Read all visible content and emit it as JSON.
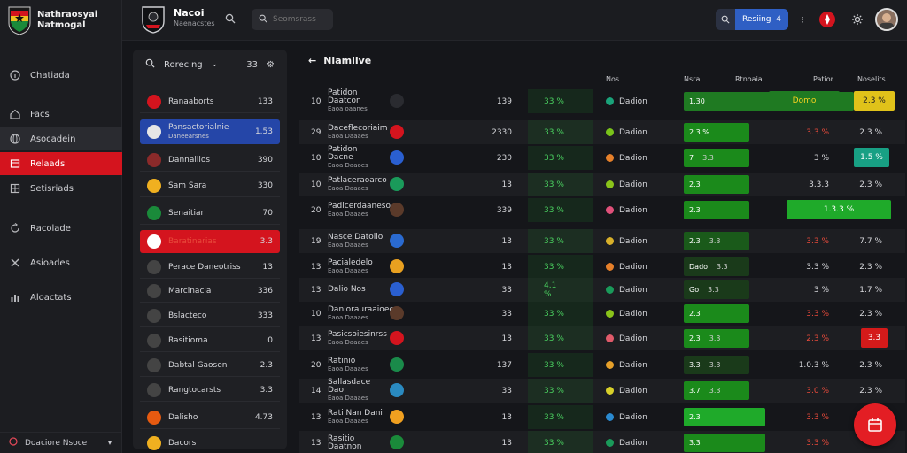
{
  "brand": {
    "title": "Nathraosyai\nNatmogal"
  },
  "nav": [
    {
      "label": "Chatiada",
      "icon": "info-icon"
    },
    {
      "label": "Facs",
      "icon": "home-icon"
    },
    {
      "label": "Asocadein",
      "icon": "globe-icon"
    },
    {
      "label": "Relaads",
      "icon": "bookmark-icon"
    },
    {
      "label": "Setisriads",
      "icon": "grid-icon"
    },
    {
      "label": "Racolade",
      "icon": "refresh-icon"
    },
    {
      "label": "Asioades",
      "icon": "tools-icon"
    },
    {
      "label": "Aloactats",
      "icon": "chart-icon"
    }
  ],
  "nav_footer": "Doaciore Nsoce",
  "header": {
    "team_name": "Nacoi",
    "team_sub": "Naenacstes",
    "search_placeholder": "Seomsrass",
    "ranking_label": "Resiing",
    "ranking_value": "4"
  },
  "panel": {
    "title": "Rorecing",
    "count": "33"
  },
  "teams": [
    {
      "name": "Ranaaborts",
      "num": "133",
      "crest": "#d4141e"
    },
    {
      "name": "Pansactorialnie",
      "sub": "Daneearsnes",
      "num": "1.53",
      "crest": "#e6e6e6",
      "style": "blue"
    },
    {
      "name": "Dannallios",
      "num": "390",
      "crest": "#8b2a2a"
    },
    {
      "name": "Sam Sara",
      "num": "330",
      "crest": "#f0b020"
    },
    {
      "name": "Senaitiar",
      "num": "70",
      "crest": "#1a8a3a"
    },
    {
      "name": "Baratinarias",
      "num": "3.3",
      "crest": "#ffffff",
      "style": "red"
    },
    {
      "name": "Perace Daneotriss",
      "num": "13",
      "crest": "#444"
    },
    {
      "name": "Marcinacia",
      "num": "336",
      "crest": "#444"
    },
    {
      "name": "Bslacteco",
      "num": "333",
      "crest": "#444"
    },
    {
      "name": "Rasitioma",
      "num": "0",
      "crest": "#444"
    },
    {
      "name": "Dabtal Gaosen",
      "num": "2.3",
      "crest": "#444"
    },
    {
      "name": "Rangtocarsts",
      "num": "3.3",
      "crest": "#444"
    },
    {
      "name": "Dalisho",
      "num": "4.73",
      "crest": "#e65a10"
    },
    {
      "name": "Dacors",
      "num": "",
      "crest": "#f0b020"
    }
  ],
  "main": {
    "title": "Nlamiive",
    "columns": [
      "Nos",
      "Nsra",
      "Rtnoaia",
      "Patior",
      "Noselits"
    ]
  },
  "rows": [
    {
      "rank": "10",
      "team": "Patidon Daatcon",
      "sub": "Eaoa oaanes",
      "crest": "#2a2b30",
      "score": "139",
      "pct": "33 %",
      "res": "Dadion",
      "dot": "#1aa37a",
      "bar": {
        "a": "1.30",
        "b": "",
        "color": "#1f7a22",
        "w": 192
      },
      "v7": "",
      "v8": "",
      "pill": {
        "text": "Domo",
        "left": 530,
        "w": 80,
        "bg": "#1f7a22",
        "color": "#f5d020"
      },
      "pill2": {
        "text": "2.3 %",
        "left": 626,
        "w": 46,
        "bg": "#e0c21a",
        "color": "#222"
      }
    },
    {
      "rank": "29",
      "team": "Daceflecoriaim",
      "sub": "Eaoa Daaaes",
      "crest": "#d4141e",
      "score": "2330",
      "pct": "33 %",
      "res": "Dadion",
      "dot": "#7ac31a",
      "bar": {
        "a": "2.3 %",
        "b": "",
        "color": "#1b8a1b",
        "w": 74
      },
      "v7": "3.3 %",
      "v7red": true,
      "v8": "2.3 %"
    },
    {
      "rank": "10",
      "team": "Patidon Dacne",
      "sub": "Eaoa Daaoes",
      "crest": "#2a5fd0",
      "score": "230",
      "pct": "33 %",
      "res": "Dadion",
      "dot": "#e6802a",
      "bar": {
        "a": "7",
        "b": "3.3",
        "color": "#1b8a1b",
        "w": 74
      },
      "v7": "3 %",
      "v8": "",
      "pill2": {
        "text": "1.5 %",
        "left": 626,
        "w": 40,
        "bg": "#18a084",
        "color": "#fff"
      }
    },
    {
      "rank": "10",
      "team": "Patlaceraoarco",
      "sub": "Eaoa Daaaes",
      "crest": "#1a9a5a",
      "score": "13",
      "pct": "33 %",
      "res": "Dadion",
      "dot": "#8ac31a",
      "bar": {
        "a": "2.3",
        "b": "",
        "color": "#1b8a1b",
        "w": 74
      },
      "v7": "3.3.3",
      "v8": "2.3 %"
    },
    {
      "rank": "20",
      "team": "Padicerdaaneso",
      "sub": "Eaoa Daaaes",
      "crest": "#5a3a2a",
      "score": "339",
      "pct": "33 %",
      "res": "Dadion",
      "dot": "#e0507a",
      "bar": {
        "a": "2.3",
        "b": "",
        "color": "#1b8a1b",
        "w": 74
      },
      "v7": "",
      "v8": "",
      "pill": {
        "text": "1.3.3 %",
        "left": 550,
        "w": 118,
        "bg": "#1faa2a",
        "color": "#fff"
      }
    },
    {
      "rank": "19",
      "team": "Nasce Datolio",
      "sub": "Eaoa Daaaes",
      "crest": "#2a6ad0",
      "score": "13",
      "pct": "33 %",
      "res": "Dadion",
      "dot": "#d8b02a",
      "bar": {
        "a": "2.3",
        "b": "3.3",
        "color": "#1a5a1a",
        "w": 74
      },
      "v7": "3.3 %",
      "v7red": true,
      "v8": "7.7 %"
    },
    {
      "rank": "13",
      "team": "Pacialedelo",
      "sub": "Eaoa Daaaes",
      "crest": "#e8a020",
      "score": "13",
      "pct": "33 %",
      "res": "Dadion",
      "dot": "#e6802a",
      "bar": {
        "a": "Dado",
        "b": "3.3",
        "color": "#1a3a1a",
        "w": 74
      },
      "v7": "3.3 %",
      "v8": "2.3 %"
    },
    {
      "rank": "13",
      "team": "Dalio Nos",
      "sub": "",
      "crest": "#2a5fd0",
      "score": "33",
      "pct": "4.1 %",
      "res": "Dadion",
      "dot": "#1a9a5a",
      "bar": {
        "a": "Go",
        "b": "3.3",
        "color": "#1a3a1a",
        "w": 74
      },
      "v7": "3 %",
      "v8": "1.7 %"
    },
    {
      "rank": "10",
      "team": "Daniorauraaioee",
      "sub": "Eaoa Daaaes",
      "crest": "#5a3a2a",
      "score": "33",
      "pct": "33 %",
      "res": "Dadion",
      "dot": "#8ac31a",
      "bar": {
        "a": "2.3",
        "b": "",
        "color": "#1b8a1b",
        "w": 74
      },
      "v7": "3.3 %",
      "v7red": true,
      "v8": "2.3 %"
    },
    {
      "rank": "13",
      "team": "Pasicsoiesinrss",
      "sub": "Eaoa Daaaes",
      "crest": "#d4141e",
      "score": "13",
      "pct": "33 %",
      "res": "Dadion",
      "dot": "#e05a6a",
      "bar": {
        "a": "2.3",
        "b": "3.3",
        "color": "#1b8a1b",
        "w": 74
      },
      "v7": "2.3 %",
      "v7red": true,
      "v8": "",
      "pill2": {
        "text": "3.3",
        "left": 634,
        "w": 30,
        "bg": "#d41a1a",
        "color": "#fff"
      }
    },
    {
      "rank": "20",
      "team": "Ratinio",
      "sub": "Eaoa Daaaes",
      "crest": "#1a8a4a",
      "score": "137",
      "pct": "33 %",
      "res": "Dadion",
      "dot": "#e6a02a",
      "bar": {
        "a": "3.3",
        "b": "3.3",
        "color": "#1a3a1a",
        "w": 74
      },
      "v7": "1.0.3 %",
      "v8": "2.3 %"
    },
    {
      "rank": "14",
      "team": "Sallasdace Dao",
      "sub": "Eaoa Daaaes",
      "crest": "#2a8ac0",
      "score": "33",
      "pct": "33 %",
      "res": "Dadion",
      "dot": "#d8d02a",
      "bar": {
        "a": "3.7",
        "b": "3.3",
        "color": "#1b8a1b",
        "w": 74
      },
      "v7": "3.0 %",
      "v7red": true,
      "v8": "2.3 %"
    },
    {
      "rank": "13",
      "team": "Rati Nan Dani",
      "sub": "Eaoa Daaaes",
      "crest": "#f0a020",
      "score": "13",
      "pct": "33 %",
      "res": "Dadion",
      "dot": "#2a8ad0",
      "bar": {
        "a": "2.3",
        "b": "",
        "color": "#1faa2a",
        "w": 92
      },
      "v7": "3.3 %",
      "v7red": true,
      "v8": ""
    },
    {
      "rank": "13",
      "team": "Rasitio Daatnon",
      "sub": "",
      "crest": "#1a8a3a",
      "score": "13",
      "pct": "33 %",
      "res": "Dadion",
      "dot": "#1a9a5a",
      "bar": {
        "a": "3.3",
        "b": "",
        "color": "#1b8a1b",
        "w": 92
      },
      "v7": "3.3 %",
      "v7red": true,
      "v8": ""
    }
  ]
}
